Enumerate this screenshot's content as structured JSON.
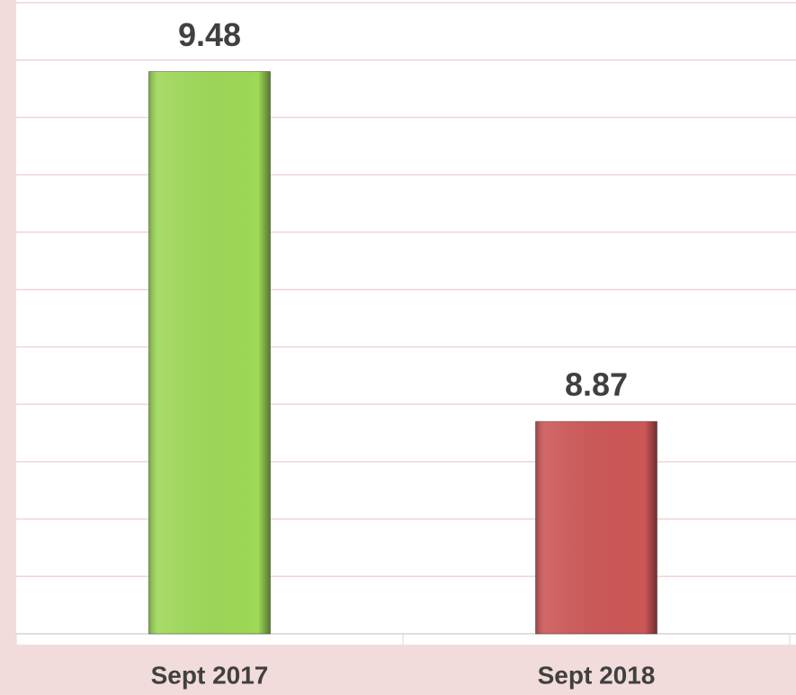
{
  "chart_data": {
    "type": "bar",
    "categories": [
      "Sept 2017",
      "Sept 2018"
    ],
    "values": [
      9.48,
      8.87
    ],
    "value_labels": [
      "9.48",
      "8.87"
    ],
    "colors": [
      "#9ed957",
      "#cd5757"
    ],
    "ylim": [
      8.5,
      9.6
    ],
    "yticks": [
      8.5,
      8.6,
      8.7,
      8.8,
      8.9,
      9.0,
      9.1,
      9.2,
      9.3,
      9.4,
      9.5,
      9.6
    ],
    "grid": true
  }
}
